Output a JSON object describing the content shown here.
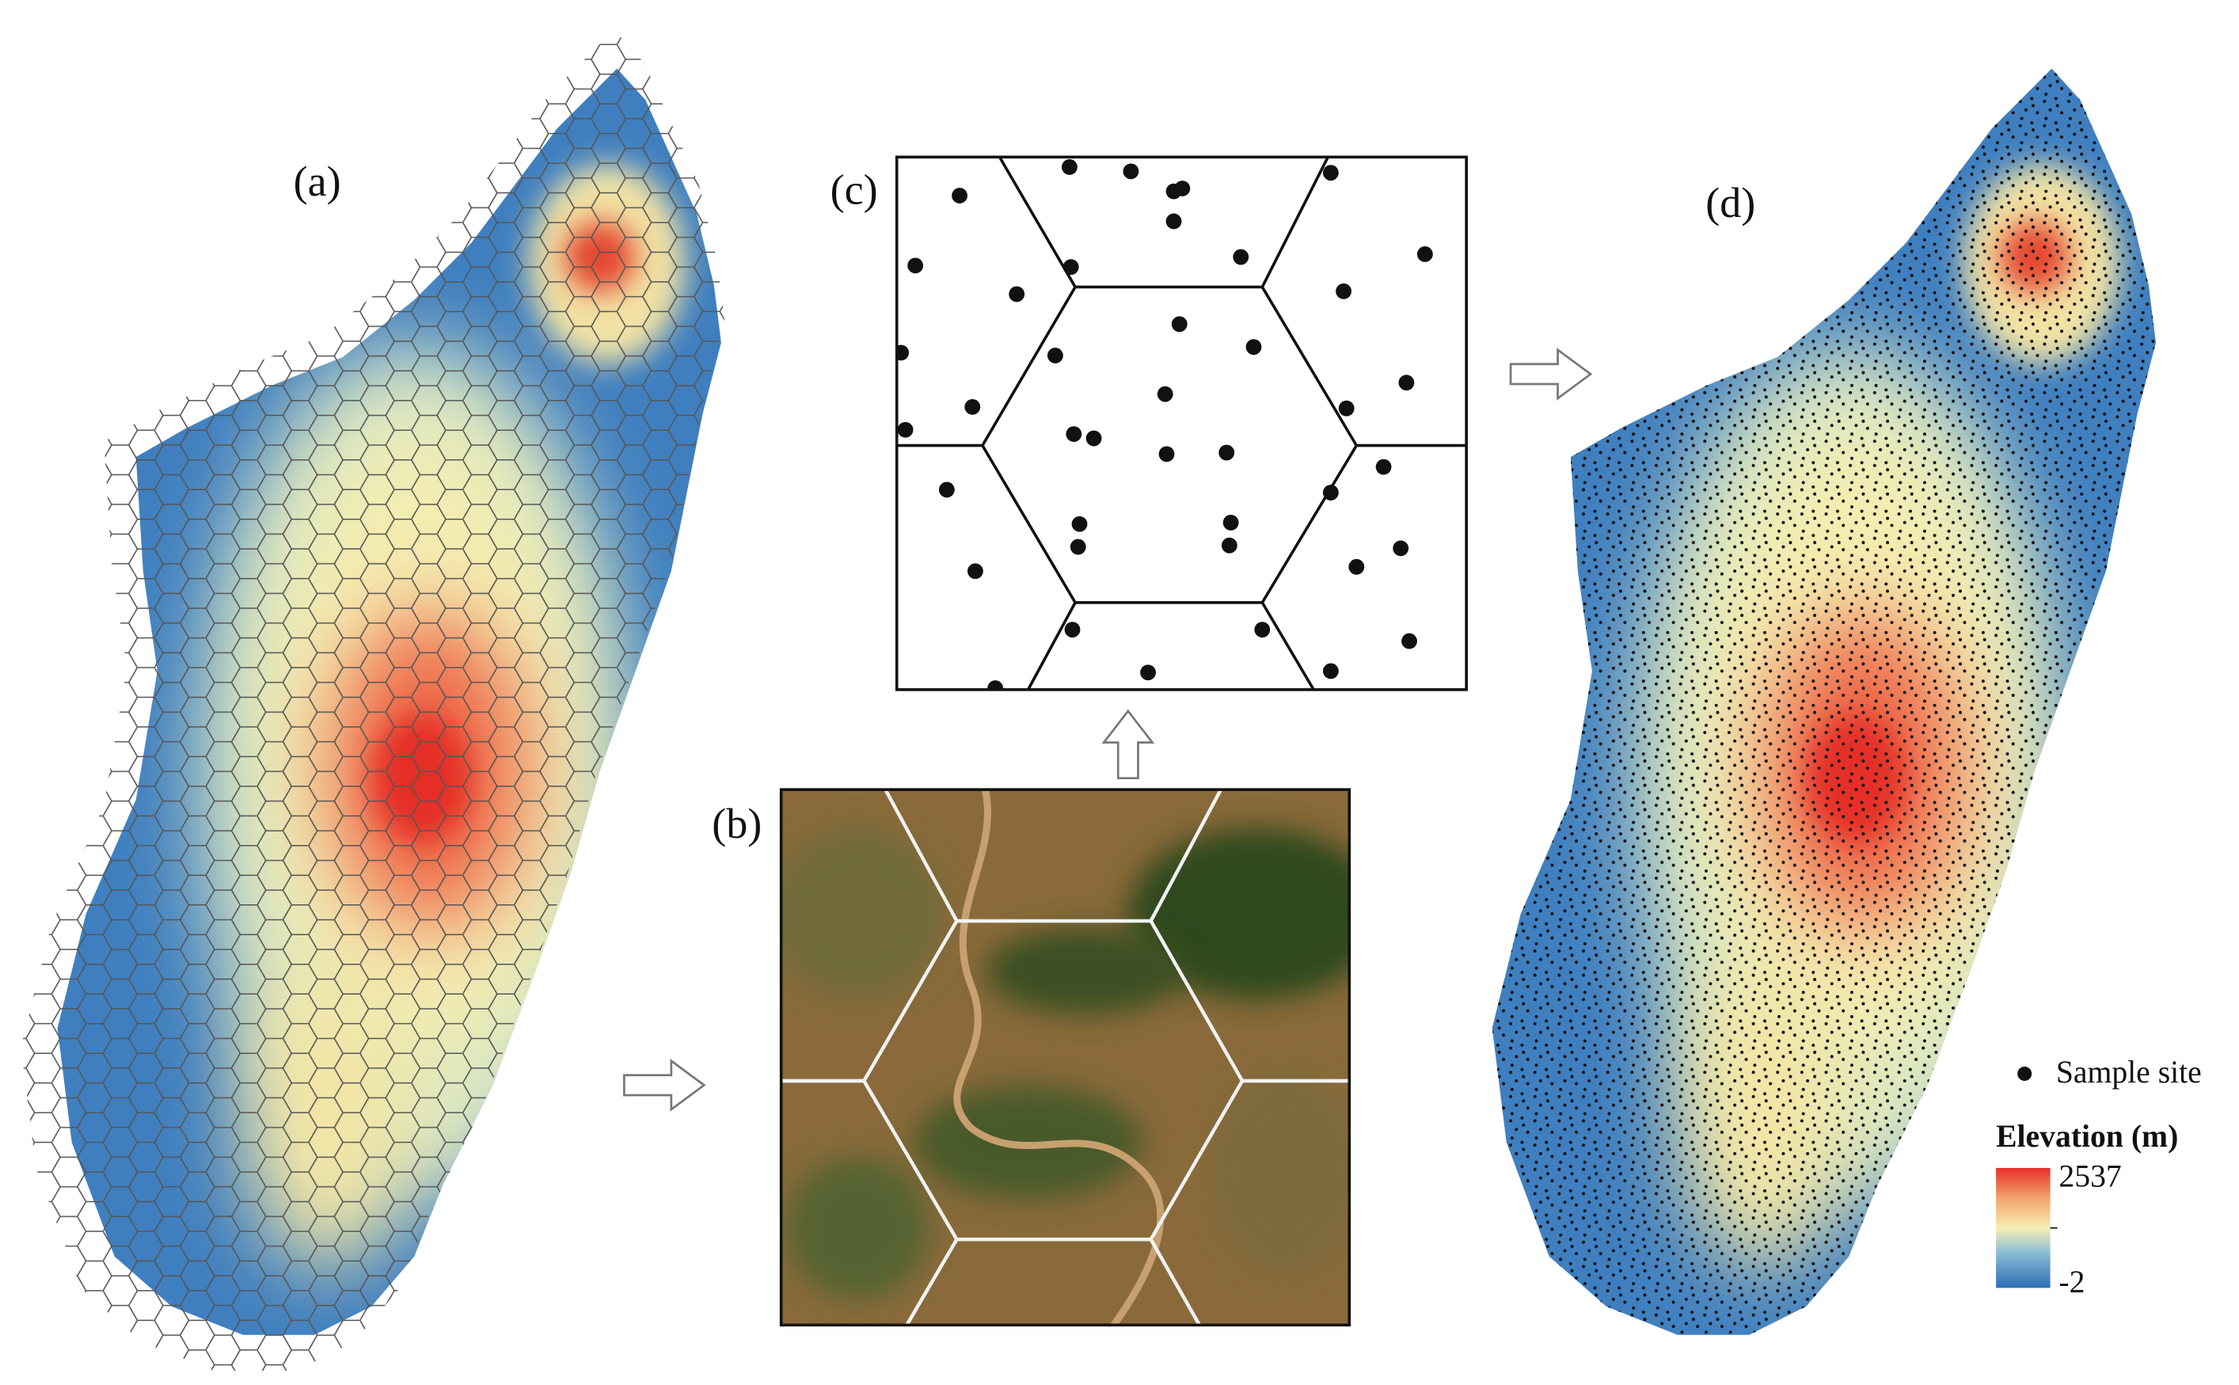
{
  "panel_labels": [
    "(a)",
    "(b)",
    "(c)",
    "(d)"
  ],
  "legend": {
    "sample_label": "Sample site",
    "title": "Elevation (m)",
    "max": 2537,
    "min": -2
  }
}
